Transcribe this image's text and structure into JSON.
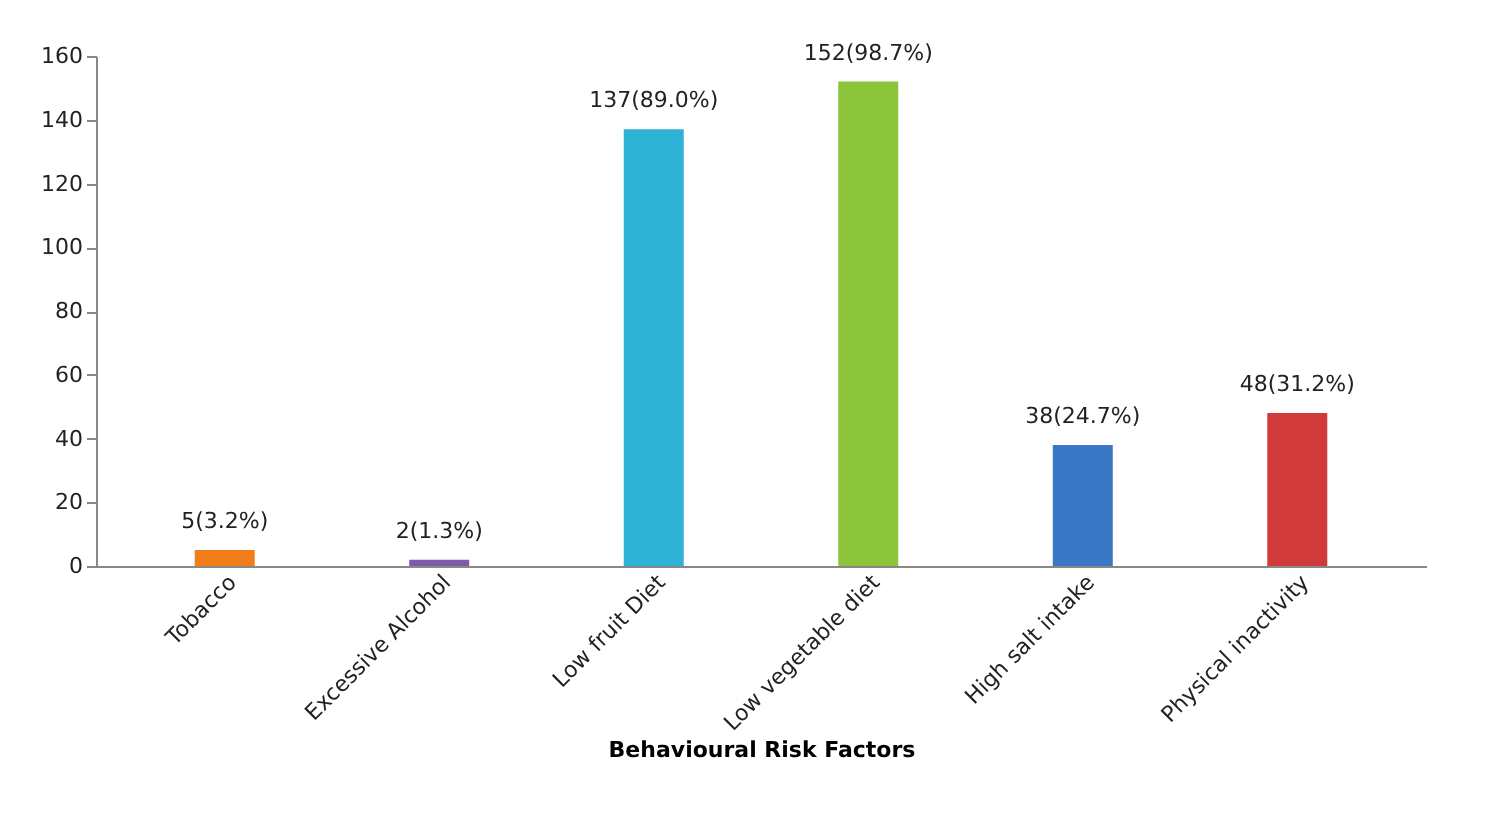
{
  "chart_data": {
    "type": "bar",
    "xlabel": "Behavioural Risk Factors",
    "categories": [
      "Tobacco",
      "Excessive Alcohol",
      "Low fruit Diet",
      "Low vegetable diet",
      "High salt intake",
      "Physical inactivity"
    ],
    "values": [
      5,
      2,
      137,
      152,
      38,
      48
    ],
    "colors": [
      "#f07d1a",
      "#7a5ca8",
      "#2eb3d6",
      "#8cc43c",
      "#3a78c6",
      "#d03a3a"
    ],
    "value_labels": [
      "5(3.2%)",
      "2(1.3%)",
      "137(89.0%)",
      "152(98.7%)",
      "38(24.7%)",
      "48(31.2%)"
    ],
    "ylim": [
      0,
      160
    ],
    "yticks": [
      0,
      20,
      40,
      60,
      80,
      100,
      120,
      140,
      160
    ],
    "grid": false
  }
}
